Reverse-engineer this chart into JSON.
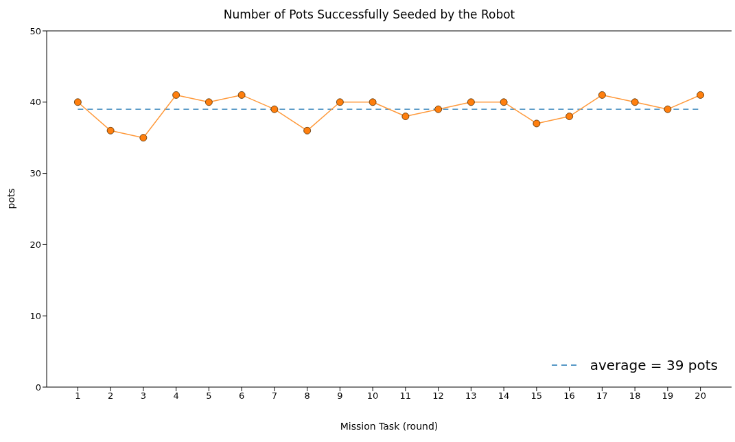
{
  "chart_data": {
    "type": "line",
    "title": "Number of Pots Successfully Seeded by the Robot",
    "xlabel": "Mission Task (round)",
    "ylabel": "pots",
    "x": [
      1,
      2,
      3,
      4,
      5,
      6,
      7,
      8,
      9,
      10,
      11,
      12,
      13,
      14,
      15,
      16,
      17,
      18,
      19,
      20
    ],
    "series": [
      {
        "color": "#ff7f0e",
        "values": [
          40,
          36,
          35,
          41,
          40,
          41,
          39,
          36,
          40,
          40,
          38,
          39,
          40,
          40,
          37,
          38,
          41,
          40,
          39,
          41
        ]
      }
    ],
    "marker": "circle",
    "xlim": [
      0.05,
      20.95
    ],
    "xticks": [
      1,
      2,
      3,
      4,
      5,
      6,
      7,
      8,
      9,
      10,
      11,
      12,
      13,
      14,
      15,
      16,
      17,
      18,
      19,
      20
    ],
    "ylim": [
      0,
      50
    ],
    "yticks": [
      0,
      10,
      20,
      30,
      40,
      50
    ],
    "ref_lines": [
      {
        "axis": "y",
        "value": 39,
        "label": "average = 39 pots",
        "color": "#1f77b4",
        "line_style": "dashed"
      }
    ],
    "legend": "bottom right",
    "grid": false
  }
}
